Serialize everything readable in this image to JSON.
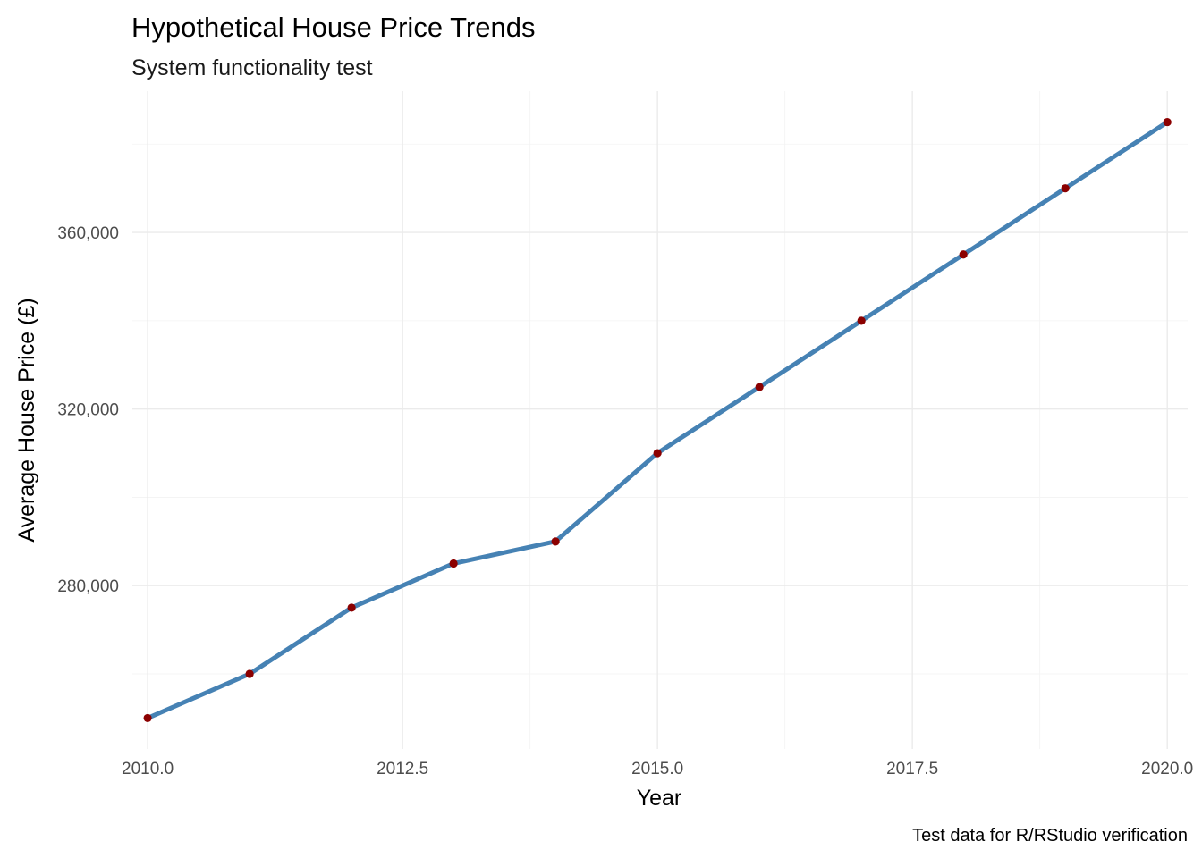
{
  "chart_data": {
    "type": "line",
    "title": "Hypothetical House Price Trends",
    "subtitle": "System functionality test",
    "caption": "Test data for R/RStudio verification",
    "xlabel": "Year",
    "ylabel": "Average House Price (£)",
    "x": [
      2010,
      2011,
      2012,
      2013,
      2014,
      2015,
      2016,
      2017,
      2018,
      2019,
      2020
    ],
    "series": [
      {
        "values": [
          250000,
          260000,
          275000,
          285000,
          290000,
          310000,
          325000,
          340000,
          355000,
          370000,
          385000
        ],
        "line_color": "#4682b4",
        "point_color": "#8b0000"
      }
    ],
    "xlim": [
      2009.85,
      2020.2
    ],
    "ylim": [
      243000,
      392000
    ],
    "x_ticks": [
      2010,
      2012.5,
      2015,
      2017.5,
      2020
    ],
    "x_tick_labels": [
      "2010.0",
      "2012.5",
      "2015.0",
      "2017.5",
      "2020.0"
    ],
    "x_minor_ticks": [
      2011.25,
      2013.75,
      2016.25,
      2018.75
    ],
    "y_ticks": [
      280000,
      320000,
      360000
    ],
    "y_tick_labels": [
      "280,000",
      "320,000",
      "360,000"
    ],
    "y_minor_ticks": [
      260000,
      300000,
      340000,
      380000
    ],
    "grid": true,
    "legend": "none",
    "background": "#ffffff",
    "grid_color": "#ebebeb"
  }
}
